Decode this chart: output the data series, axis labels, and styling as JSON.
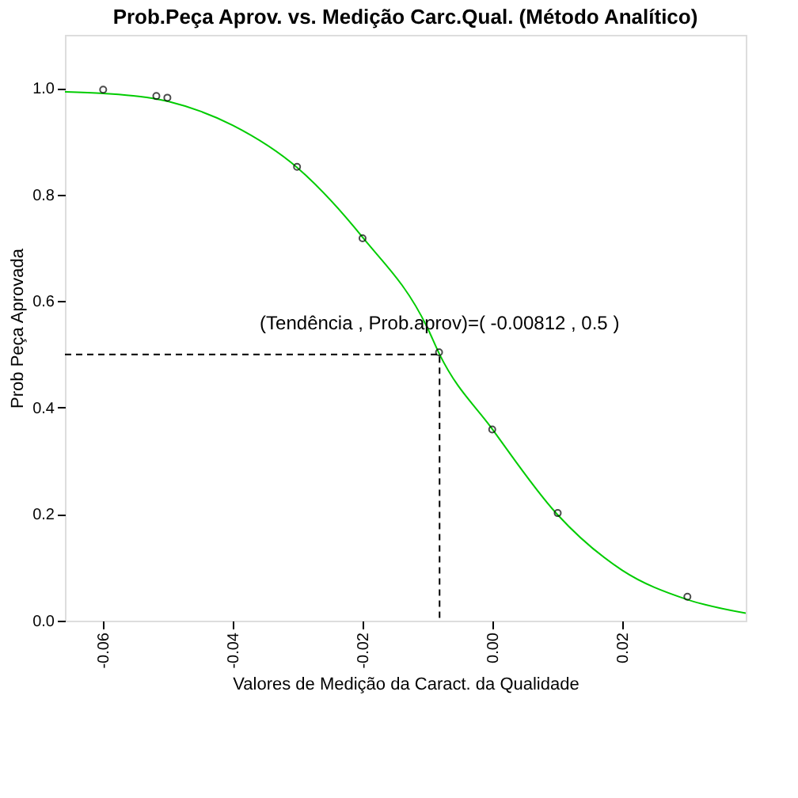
{
  "chart_data": {
    "type": "scatter",
    "title": "Prob.Peça Aprov. vs. Medição Carc.Qual. (Método Analítico)",
    "xlabel": "Valores de Medição da Caract. da Qualidade",
    "ylabel": "Prob Peça Aprovada",
    "xlim": [
      -0.0659,
      0.0391
    ],
    "ylim": [
      0,
      1.1
    ],
    "xticks": [
      -0.06,
      -0.04,
      -0.02,
      {
        "value": 0,
        "label": "0.00"
      },
      0.02
    ],
    "yticks": [
      {
        "value": 0,
        "label": "0.0"
      },
      0.2,
      0.4,
      0.6,
      0.8,
      {
        "value": 1,
        "label": "1.0"
      }
    ],
    "grid": false,
    "series": [
      {
        "type": "line",
        "color": "#00cc00",
        "line_style": "solid",
        "marker": "none",
        "x": [
          -0.0659,
          -0.06,
          -0.05,
          -0.04,
          -0.03,
          -0.02,
          -0.01,
          -0.00812,
          0.0,
          0.01,
          0.02,
          0.03,
          0.0391
        ],
        "values": [
          0.993,
          0.99,
          0.975,
          0.93,
          0.85,
          0.72,
          0.55,
          0.5,
          0.36,
          0.2,
          0.095,
          0.04,
          0.014
        ]
      },
      {
        "type": "line",
        "color": "#000000",
        "line_style": "dashed",
        "marker": "none",
        "x": [
          -0.0659,
          -0.00812,
          -0.00812
        ],
        "values": [
          0.5,
          0.5,
          0.0
        ]
      },
      {
        "color": "#000000",
        "marker": "circle",
        "x": [
          -0.06,
          -0.0518,
          -0.0501,
          -0.0301,
          -0.02,
          -0.0082,
          0.0,
          0.0101,
          0.0301
        ],
        "values": [
          0.997,
          0.985,
          0.982,
          0.852,
          0.718,
          0.504,
          0.359,
          0.202,
          0.045
        ]
      }
    ],
    "annotations": [
      {
        "text": "(Tendência , Prob.aprov)=( -0.00812  ,  0.5 )",
        "x": -0.00812,
        "y": 0.5
      }
    ]
  }
}
